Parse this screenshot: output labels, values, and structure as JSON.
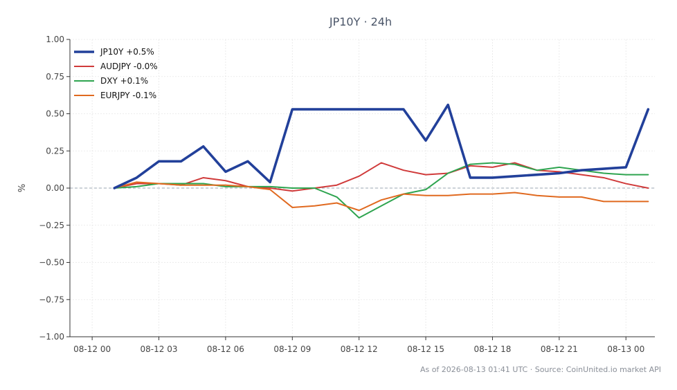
{
  "chart_data": {
    "type": "line",
    "title": "JP10Y · 24h",
    "xlabel": "",
    "ylabel": "%",
    "x_tick_labels": [
      "08-12 00",
      "08-12 03",
      "08-12 06",
      "08-12 09",
      "08-12 12",
      "08-12 15",
      "08-12 18",
      "08-12 21",
      "08-13 00"
    ],
    "x_tick_hours": [
      0,
      3,
      6,
      9,
      12,
      15,
      18,
      21,
      24
    ],
    "x_range_hours": [
      -1,
      25.3
    ],
    "x_hours": [
      1,
      2,
      3,
      4,
      5,
      6,
      7,
      8,
      9,
      10,
      11,
      12,
      13,
      14,
      15,
      16,
      17,
      18,
      19,
      20,
      21,
      22,
      23,
      24,
      25
    ],
    "y_tick_labels": [
      "1.00",
      "0.75",
      "0.50",
      "0.25",
      "0.00",
      "−0.25",
      "−0.50",
      "−0.75",
      "−1.00"
    ],
    "y_ticks": [
      1.0,
      0.75,
      0.5,
      0.25,
      0.0,
      -0.25,
      -0.5,
      -0.75,
      -1.0
    ],
    "ylim": [
      -1.0,
      1.0
    ],
    "grid": true,
    "zero_line": true,
    "legend_position": "top-left",
    "series": [
      {
        "name": "JP10Y +0.5%",
        "color": "#22409a",
        "values": [
          0.0,
          0.07,
          0.18,
          0.18,
          0.28,
          0.11,
          0.18,
          0.04,
          0.53,
          0.53,
          0.53,
          0.53,
          0.53,
          0.53,
          0.32,
          0.56,
          0.07,
          0.07,
          0.08,
          0.09,
          0.1,
          0.12,
          0.13,
          0.14,
          0.53
        ]
      },
      {
        "name": "AUDJPY -0.0%",
        "color": "#d03a3a",
        "values": [
          0.0,
          0.03,
          0.03,
          0.02,
          0.07,
          0.05,
          0.01,
          0.0,
          -0.02,
          0.0,
          0.02,
          0.08,
          0.17,
          0.12,
          0.09,
          0.1,
          0.15,
          0.14,
          0.17,
          0.12,
          0.11,
          0.09,
          0.07,
          0.03,
          0.0
        ]
      },
      {
        "name": "DXY +0.1%",
        "color": "#2ea44f",
        "values": [
          0.0,
          0.01,
          0.03,
          0.03,
          0.03,
          0.01,
          0.01,
          0.01,
          0.0,
          0.0,
          -0.06,
          -0.2,
          -0.12,
          -0.04,
          -0.01,
          0.1,
          0.16,
          0.17,
          0.16,
          0.12,
          0.14,
          0.12,
          0.1,
          0.09,
          0.09
        ]
      },
      {
        "name": "EURJPY -0.1%",
        "color": "#e0691f",
        "values": [
          0.0,
          0.04,
          0.03,
          0.02,
          0.02,
          0.02,
          0.01,
          -0.01,
          -0.13,
          -0.12,
          -0.1,
          -0.15,
          -0.08,
          -0.04,
          -0.05,
          -0.05,
          -0.04,
          -0.04,
          -0.03,
          -0.05,
          -0.06,
          -0.06,
          -0.09,
          -0.09,
          -0.09
        ]
      }
    ]
  },
  "footer": {
    "text": "As of 2026-08-13 01:41 UTC · Source: CoinUnited.io market API"
  }
}
